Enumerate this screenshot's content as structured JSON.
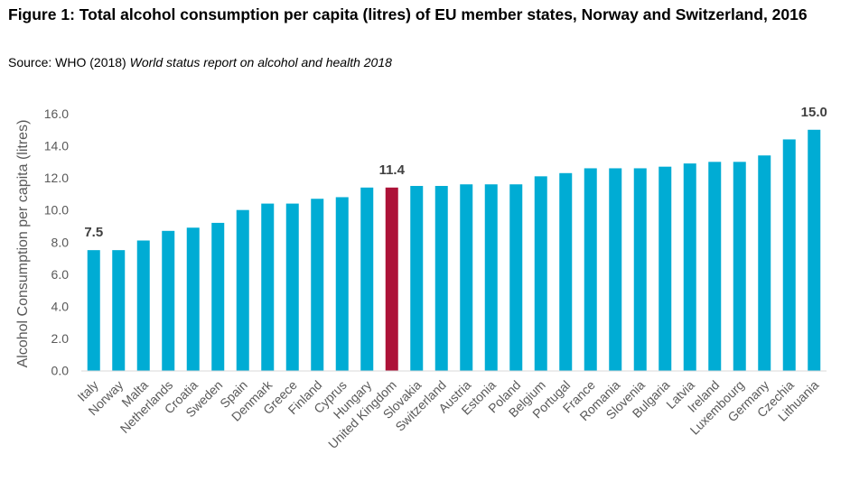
{
  "title": "Figure 1: Total alcohol consumption per capita (litres) of EU member states, Norway and Switzerland, 2016",
  "source_prefix": "Source: WHO (2018) ",
  "source_italic": "World status report on alcohol and health 2018",
  "colors": {
    "bar": "#00acd4",
    "highlight": "#ad1238",
    "axis": "#d9d9d9"
  },
  "chart_data": {
    "type": "bar",
    "title": "Figure 1: Total alcohol consumption per capita (litres) of EU member states, Norway and Switzerland, 2016",
    "xlabel": "",
    "ylabel": "Alcohol Consumption per capita (litres)",
    "ylim": [
      0,
      16
    ],
    "yticks": [
      "0.0",
      "2.0",
      "4.0",
      "6.0",
      "8.0",
      "10.0",
      "12.0",
      "14.0",
      "16.0"
    ],
    "grid": false,
    "categories": [
      "Italy",
      "Norway",
      "Malta",
      "Netherlands",
      "Croatia",
      "Sweden",
      "Spain",
      "Denmark",
      "Greece",
      "Finland",
      "Cyprus",
      "Hungary",
      "United Kingdom",
      "Slovakia",
      "Switzerland",
      "Austria",
      "Estonia",
      "Poland",
      "Belgium",
      "Portugal",
      "France",
      "Romania",
      "Slovenia",
      "Bulgaria",
      "Latvia",
      "Ireland",
      "Luxembourg",
      "Germany",
      "Czechia",
      "Lithuania"
    ],
    "values": [
      7.5,
      7.5,
      8.1,
      8.7,
      8.9,
      9.2,
      10.0,
      10.4,
      10.4,
      10.7,
      10.8,
      11.4,
      11.4,
      11.5,
      11.5,
      11.6,
      11.6,
      11.6,
      12.1,
      12.3,
      12.6,
      12.6,
      12.6,
      12.7,
      12.9,
      13.0,
      13.0,
      13.4,
      14.4,
      15.0
    ],
    "highlight_index": 12,
    "data_labels": [
      {
        "index": 0,
        "text": "7.5"
      },
      {
        "index": 12,
        "text": "11.4"
      },
      {
        "index": 29,
        "text": "15.0"
      }
    ]
  }
}
